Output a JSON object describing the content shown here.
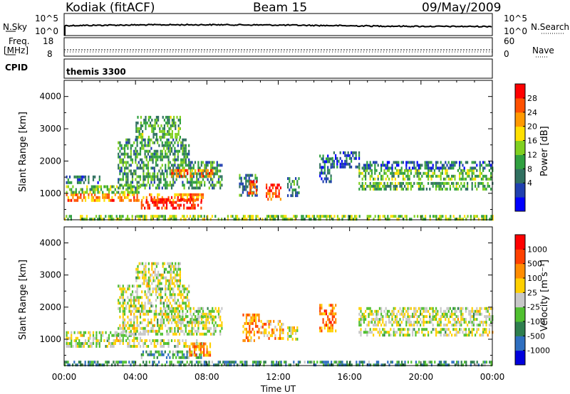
{
  "header": {
    "station": "Kodiak (fitACF)",
    "beam": "Beam 15",
    "date": "09/May/2009"
  },
  "top_panels": {
    "nsky_label": "N.Sky",
    "nsky_ticks": [
      "10^5",
      "10^0"
    ],
    "nsearch_label": "N.Search",
    "nsearch_ticks": [
      "10^5",
      "10^0"
    ],
    "freq_label_1": "Freq.",
    "freq_label_2": "[MHz]",
    "freq_ticks": [
      "18",
      "8"
    ],
    "nave_label": "Nave",
    "nave_ticks": [
      "60",
      "0"
    ],
    "cpid_label": "CPID",
    "cpid_value": "themis 3300"
  },
  "chart_data": [
    {
      "type": "heatmap",
      "name": "power",
      "ylabel": "Slant Range [km]",
      "xlabel": "",
      "x_ticks": [
        "00:00",
        "04:00",
        "08:00",
        "12:00",
        "16:00",
        "20:00",
        "00:00"
      ],
      "y_ticks": [
        "4000",
        "3000",
        "2000",
        "1000"
      ],
      "xlim_hours": [
        0,
        24
      ],
      "ylim_km": [
        180,
        4500
      ],
      "colorbar_label": "Power [dB]",
      "colorbar_ticks": [
        "28",
        "24",
        "20",
        "16",
        "12",
        "8",
        "4"
      ],
      "colormap": [
        "#0000ff",
        "#2040b0",
        "#307060",
        "#30a040",
        "#80d020",
        "#ffe000",
        "#ff9900",
        "#ff5000",
        "#ff0000"
      ],
      "regions": [
        {
          "t0": 0.0,
          "t1": 24.0,
          "r0": 200,
          "r1": 330,
          "v": 0.5
        },
        {
          "t0": 0.1,
          "t1": 7.8,
          "r0": 750,
          "r1": 1000,
          "v": 0.75
        },
        {
          "t0": 4.3,
          "t1": 7.7,
          "r0": 500,
          "r1": 850,
          "v": 0.95
        },
        {
          "t0": 0.1,
          "t1": 4.3,
          "r0": 1050,
          "r1": 1250,
          "v": 0.45
        },
        {
          "t0": 0.1,
          "t1": 2.0,
          "r0": 1350,
          "r1": 1550,
          "v": 0.25
        },
        {
          "t0": 3.0,
          "t1": 8.8,
          "r0": 1200,
          "r1": 2000,
          "v": 0.35
        },
        {
          "t0": 6.0,
          "t1": 8.3,
          "r0": 1500,
          "r1": 1750,
          "v": 0.8
        },
        {
          "t0": 3.0,
          "t1": 7.0,
          "r0": 2000,
          "r1": 2700,
          "v": 0.35
        },
        {
          "t0": 4.0,
          "t1": 6.5,
          "r0": 2700,
          "r1": 3400,
          "v": 0.4
        },
        {
          "t0": 9.8,
          "t1": 10.8,
          "r0": 900,
          "r1": 1600,
          "v": 0.3
        },
        {
          "t0": 10.3,
          "t1": 10.8,
          "r0": 1000,
          "r1": 1400,
          "v": 0.85
        },
        {
          "t0": 11.3,
          "t1": 12.1,
          "r0": 800,
          "r1": 1300,
          "v": 0.85
        },
        {
          "t0": 12.5,
          "t1": 13.2,
          "r0": 900,
          "r1": 1500,
          "v": 0.3
        },
        {
          "t0": 14.3,
          "t1": 15.0,
          "r0": 1400,
          "r1": 2200,
          "v": 0.25
        },
        {
          "t0": 15.0,
          "t1": 16.5,
          "r0": 1800,
          "r1": 2300,
          "v": 0.2
        },
        {
          "t0": 16.5,
          "t1": 24.0,
          "r0": 1450,
          "r1": 1750,
          "v": 0.45
        },
        {
          "t0": 16.5,
          "t1": 24.0,
          "r0": 1100,
          "r1": 1350,
          "v": 0.4
        },
        {
          "t0": 16.5,
          "t1": 24.0,
          "r0": 1750,
          "r1": 2000,
          "v": 0.25
        }
      ]
    },
    {
      "type": "heatmap",
      "name": "velocity",
      "ylabel": "Slant Range [km]",
      "xlabel": "Time UT",
      "x_ticks": [
        "00:00",
        "04:00",
        "08:00",
        "12:00",
        "16:00",
        "20:00",
        "00:00"
      ],
      "y_ticks": [
        "4000",
        "3000",
        "2000",
        "1000"
      ],
      "xlim_hours": [
        0,
        24
      ],
      "ylim_km": [
        180,
        4500
      ],
      "colorbar_label": "Velocity [m s⁻¹]",
      "colorbar_ticks": [
        "1000",
        "500",
        "100",
        "25",
        "-25",
        "-100",
        "-500",
        "-1000"
      ],
      "colormap": [
        "#0000dd",
        "#2f6fc0",
        "#2f7f4f",
        "#50c030",
        "#c8c8c8",
        "#ffd000",
        "#ff8c00",
        "#ff4000",
        "#ff0000"
      ],
      "regions": [
        {
          "t0": 0.0,
          "t1": 24.0,
          "r0": 200,
          "r1": 330,
          "v": 0.3
        },
        {
          "t0": 0.1,
          "t1": 7.8,
          "r0": 750,
          "r1": 1000,
          "v": 0.5
        },
        {
          "t0": 4.3,
          "t1": 7.7,
          "r0": 400,
          "r1": 650,
          "v": 0.3
        },
        {
          "t0": 0.1,
          "t1": 4.3,
          "r0": 1050,
          "r1": 1250,
          "v": 0.5
        },
        {
          "t0": 3.0,
          "t1": 8.8,
          "r0": 1200,
          "r1": 2000,
          "v": 0.5
        },
        {
          "t0": 6.0,
          "t1": 8.3,
          "r0": 1500,
          "r1": 1750,
          "v": 0.5
        },
        {
          "t0": 3.0,
          "t1": 7.0,
          "r0": 2000,
          "r1": 2700,
          "v": 0.5
        },
        {
          "t0": 4.0,
          "t1": 6.5,
          "r0": 2700,
          "r1": 3400,
          "v": 0.5
        },
        {
          "t0": 7.0,
          "t1": 8.2,
          "r0": 500,
          "r1": 900,
          "v": 0.72
        },
        {
          "t0": 10.0,
          "t1": 10.9,
          "r0": 1000,
          "r1": 1800,
          "v": 0.72
        },
        {
          "t0": 11.0,
          "t1": 12.3,
          "r0": 1000,
          "r1": 1600,
          "v": 0.65
        },
        {
          "t0": 12.5,
          "t1": 13.1,
          "r0": 1000,
          "r1": 1400,
          "v": 0.5
        },
        {
          "t0": 14.3,
          "t1": 15.2,
          "r0": 1300,
          "r1": 2100,
          "v": 0.75
        },
        {
          "t0": 16.5,
          "t1": 24.0,
          "r0": 1450,
          "r1": 1750,
          "v": 0.5
        },
        {
          "t0": 16.5,
          "t1": 24.0,
          "r0": 1100,
          "r1": 1350,
          "v": 0.5
        },
        {
          "t0": 16.5,
          "t1": 24.0,
          "r0": 1750,
          "r1": 2000,
          "v": 0.5
        }
      ]
    }
  ]
}
